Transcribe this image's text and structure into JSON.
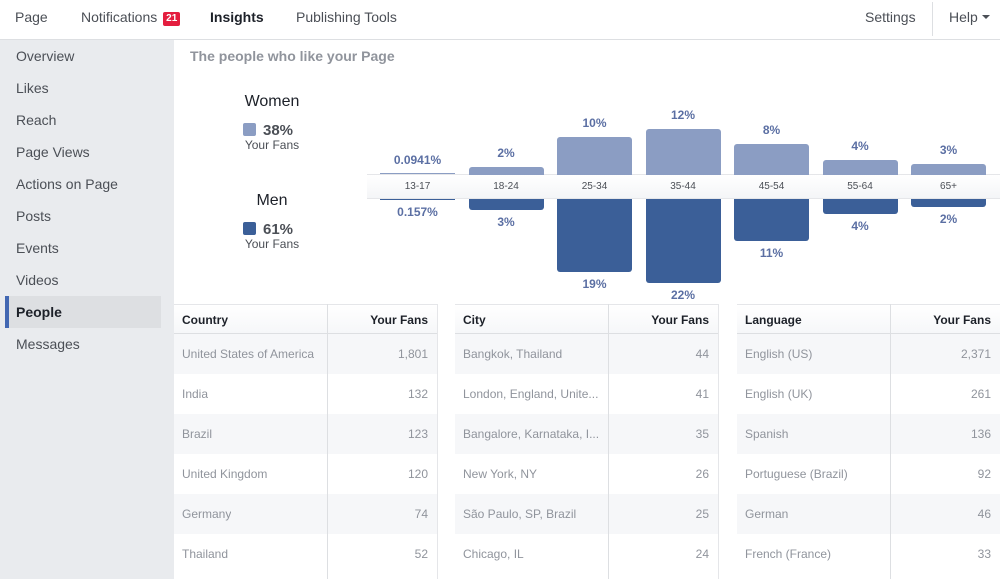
{
  "topnav": {
    "items": [
      {
        "label": "Page"
      },
      {
        "label": "Notifications",
        "badge": "21"
      },
      {
        "label": "Insights",
        "active": true
      },
      {
        "label": "Publishing Tools"
      }
    ],
    "right_items": [
      {
        "label": "Settings"
      },
      {
        "label": "Help"
      }
    ]
  },
  "sidebar": {
    "items": [
      {
        "label": "Overview"
      },
      {
        "label": "Likes"
      },
      {
        "label": "Reach"
      },
      {
        "label": "Page Views"
      },
      {
        "label": "Actions on Page"
      },
      {
        "label": "Posts"
      },
      {
        "label": "Events"
      },
      {
        "label": "Videos"
      },
      {
        "label": "People",
        "active": true
      },
      {
        "label": "Messages"
      }
    ]
  },
  "main": {
    "section_title": "The people who like your Page",
    "legend": {
      "women": {
        "title": "Women",
        "value": "38%",
        "sub": "Your Fans"
      },
      "men": {
        "title": "Men",
        "value": "61%",
        "sub": "Your Fans"
      }
    },
    "tables": [
      {
        "headers": [
          "Country",
          "Your Fans"
        ],
        "rows": [
          [
            "United States of America",
            "1,801"
          ],
          [
            "India",
            "132"
          ],
          [
            "Brazil",
            "123"
          ],
          [
            "United Kingdom",
            "120"
          ],
          [
            "Germany",
            "74"
          ],
          [
            "Thailand",
            "52"
          ]
        ]
      },
      {
        "headers": [
          "City",
          "Your Fans"
        ],
        "rows": [
          [
            "Bangkok, Thailand",
            "44"
          ],
          [
            "London, England, Unite...",
            "41"
          ],
          [
            "Bangalore, Karnataka, I...",
            "35"
          ],
          [
            "New York, NY",
            "26"
          ],
          [
            "São Paulo, SP, Brazil",
            "25"
          ],
          [
            "Chicago, IL",
            "24"
          ]
        ]
      },
      {
        "headers": [
          "Language",
          "Your Fans"
        ],
        "rows": [
          [
            "English (US)",
            "2,371"
          ],
          [
            "English (UK)",
            "261"
          ],
          [
            "Spanish",
            "136"
          ],
          [
            "Portuguese (Brazil)",
            "92"
          ],
          [
            "German",
            "46"
          ],
          [
            "French (France)",
            "33"
          ]
        ]
      }
    ]
  },
  "colors": {
    "women": "#8b9dc3",
    "men": "#3b5f98",
    "label": "#5b6fa3",
    "badge": "#e41e3f",
    "active_marker": "#4267b2"
  },
  "chart_data": {
    "type": "bar",
    "title": "The people who like your Page",
    "categories": [
      "13-17",
      "18-24",
      "25-34",
      "35-44",
      "45-54",
      "55-64",
      "65+"
    ],
    "series": [
      {
        "name": "Women",
        "values": [
          0.0941,
          2,
          10,
          12,
          8,
          4,
          3
        ],
        "labels": [
          "0.0941%",
          "2%",
          "10%",
          "12%",
          "8%",
          "4%",
          "3%"
        ]
      },
      {
        "name": "Men",
        "values": [
          0.157,
          3,
          19,
          22,
          11,
          4,
          2
        ],
        "labels": [
          "0.157%",
          "3%",
          "19%",
          "22%",
          "11%",
          "4%",
          "2%"
        ]
      }
    ],
    "ylabel": "Your Fans (%)",
    "legend": "left"
  }
}
